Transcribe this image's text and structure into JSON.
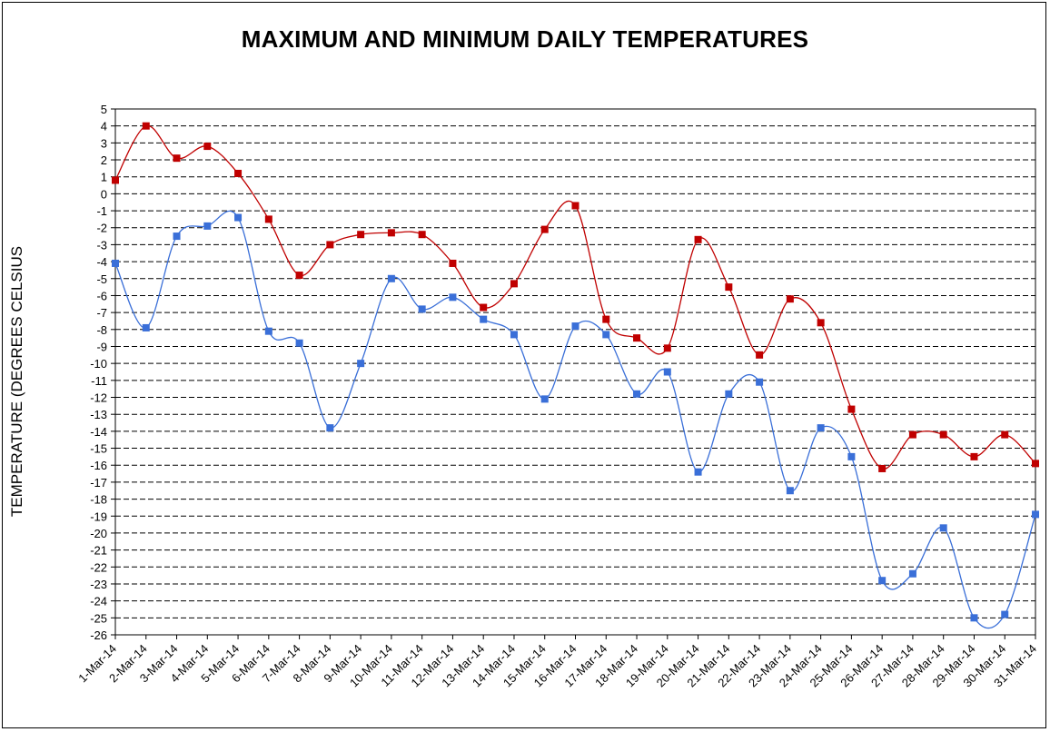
{
  "chart_data": {
    "type": "line",
    "title": "MAXIMUM AND MINIMUM DAILY TEMPERATURES",
    "xlabel": "",
    "ylabel": "TEMPERATURE (DEGREES CELSIUS",
    "ylim": [
      -26,
      5
    ],
    "grid": true,
    "categories": [
      "1-Mar-14",
      "2-Mar-14",
      "3-Mar-14",
      "4-Mar-14",
      "5-Mar-14",
      "6-Mar-14",
      "7-Mar-14",
      "8-Mar-14",
      "9-Mar-14",
      "10-Mar-14",
      "11-Mar-14",
      "12-Mar-14",
      "13-Mar-14",
      "14-Mar-14",
      "15-Mar-14",
      "16-Mar-14",
      "17-Mar-14",
      "18-Mar-14",
      "19-Mar-14",
      "20-Mar-14",
      "21-Mar-14",
      "22-Mar-14",
      "23-Mar-14",
      "24-Mar-14",
      "25-Mar-14",
      "26-Mar-14",
      "27-Mar-14",
      "28-Mar-14",
      "29-Mar-14",
      "30-Mar-14",
      "31-Mar-14"
    ],
    "yticks": [
      5,
      4,
      3,
      2,
      1,
      0,
      -1,
      -2,
      -3,
      -4,
      -5,
      -6,
      -7,
      -8,
      -9,
      -10,
      -11,
      -12,
      -13,
      -14,
      -15,
      -16,
      -17,
      -18,
      -19,
      -20,
      -21,
      -22,
      -23,
      -24,
      -25,
      -26
    ],
    "series": [
      {
        "color": "#c00000",
        "values": [
          0.8,
          4.0,
          2.1,
          2.8,
          1.2,
          -1.5,
          -4.8,
          -3.0,
          -2.4,
          -2.3,
          -2.4,
          -4.1,
          -6.7,
          -5.3,
          -2.1,
          -0.7,
          -7.4,
          -8.5,
          -9.1,
          -2.7,
          -5.5,
          -9.5,
          -6.2,
          -7.6,
          -12.7,
          -16.2,
          -14.2,
          -14.2,
          -15.5,
          -14.2,
          -15.9
        ]
      },
      {
        "color": "#3a6fd8",
        "values": [
          -4.1,
          -7.9,
          -2.5,
          -1.9,
          -1.4,
          -8.1,
          -8.8,
          -13.8,
          -10.0,
          -5.0,
          -6.8,
          -6.1,
          -7.4,
          -8.3,
          -12.1,
          -7.8,
          -8.3,
          -11.8,
          -10.5,
          -16.4,
          -11.8,
          -11.1,
          -17.5,
          -13.8,
          -15.5,
          -22.8,
          -22.4,
          -19.7,
          -25.0,
          -24.8,
          -18.9
        ]
      }
    ]
  }
}
